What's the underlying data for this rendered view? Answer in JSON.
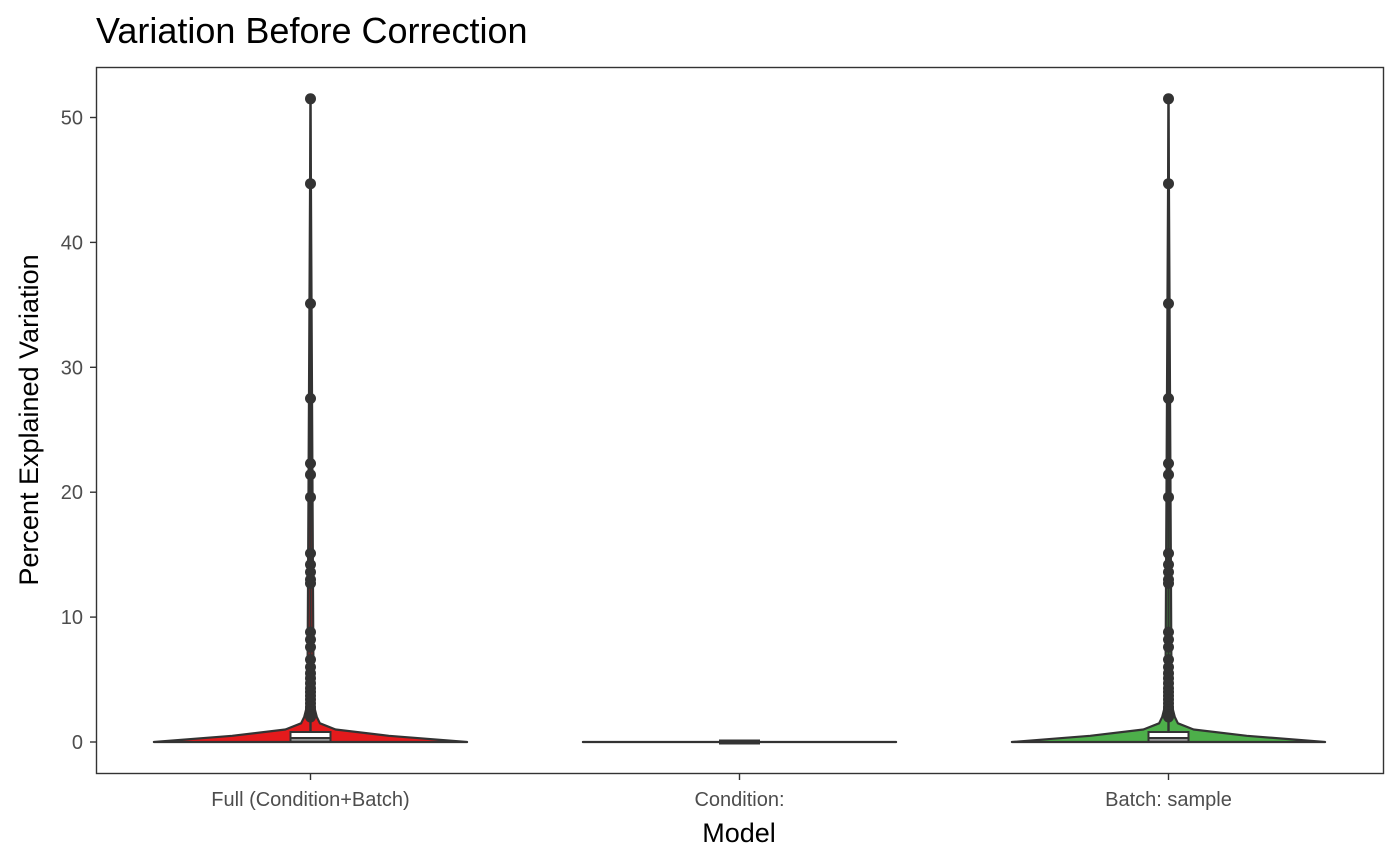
{
  "chart_data": {
    "type": "violin",
    "title": "Variation Before Correction",
    "xlabel": "Model",
    "ylabel": "Percent Explained Variation",
    "ylim": [
      -2.4,
      54
    ],
    "yticks": [
      0,
      10,
      20,
      30,
      40,
      50
    ],
    "ytick_labels": [
      "0",
      "10",
      "20",
      "30",
      "40",
      "50"
    ],
    "grid": false,
    "categories": [
      "Full (Condition+Batch)",
      "Condition:",
      "Batch: sample"
    ],
    "series": [
      {
        "category": "Full (Condition+Batch)",
        "color": "#e41a1c",
        "box": {
          "min": 0,
          "q1": 0.05,
          "median": 0.3,
          "q3": 0.8,
          "whisker_high": 1.9
        },
        "density_profile": [
          [
            0,
            1.0
          ],
          [
            0.5,
            0.5
          ],
          [
            1.0,
            0.16
          ],
          [
            1.5,
            0.06
          ],
          [
            2.0,
            0.04
          ],
          [
            3.0,
            0.02
          ],
          [
            51.5,
            0.0
          ]
        ],
        "outliers": [
          51.5,
          44.7,
          35.1,
          27.5,
          22.3,
          21.4,
          19.6,
          15.1,
          14.2,
          13.6,
          13.0,
          12.7,
          8.8,
          8.2,
          7.6,
          6.6,
          6.0,
          5.5,
          5.1,
          4.7,
          4.3,
          4.0,
          3.7,
          3.4,
          3.1,
          2.8,
          2.6,
          2.4,
          2.2,
          2.0
        ]
      },
      {
        "category": "Condition:",
        "color": "#377eb8",
        "box": {
          "min": 0,
          "q1": 0,
          "median": 0,
          "q3": 0,
          "whisker_high": 0
        },
        "density_profile": [
          [
            0,
            1.0
          ],
          [
            0.0001,
            0.0
          ]
        ],
        "outliers": []
      },
      {
        "category": "Batch: sample",
        "color": "#4daf4a",
        "box": {
          "min": 0,
          "q1": 0.05,
          "median": 0.3,
          "q3": 0.8,
          "whisker_high": 1.9
        },
        "density_profile": [
          [
            0,
            1.0
          ],
          [
            0.5,
            0.5
          ],
          [
            1.0,
            0.16
          ],
          [
            1.5,
            0.06
          ],
          [
            2.0,
            0.04
          ],
          [
            3.0,
            0.02
          ],
          [
            51.5,
            0.0
          ]
        ],
        "outliers": [
          51.5,
          44.7,
          35.1,
          27.5,
          22.3,
          21.4,
          19.6,
          15.1,
          14.2,
          13.6,
          13.0,
          12.7,
          8.8,
          8.2,
          7.6,
          6.6,
          6.0,
          5.5,
          5.1,
          4.7,
          4.3,
          4.0,
          3.7,
          3.4,
          3.1,
          2.8,
          2.6,
          2.4,
          2.2,
          2.0
        ]
      }
    ]
  }
}
